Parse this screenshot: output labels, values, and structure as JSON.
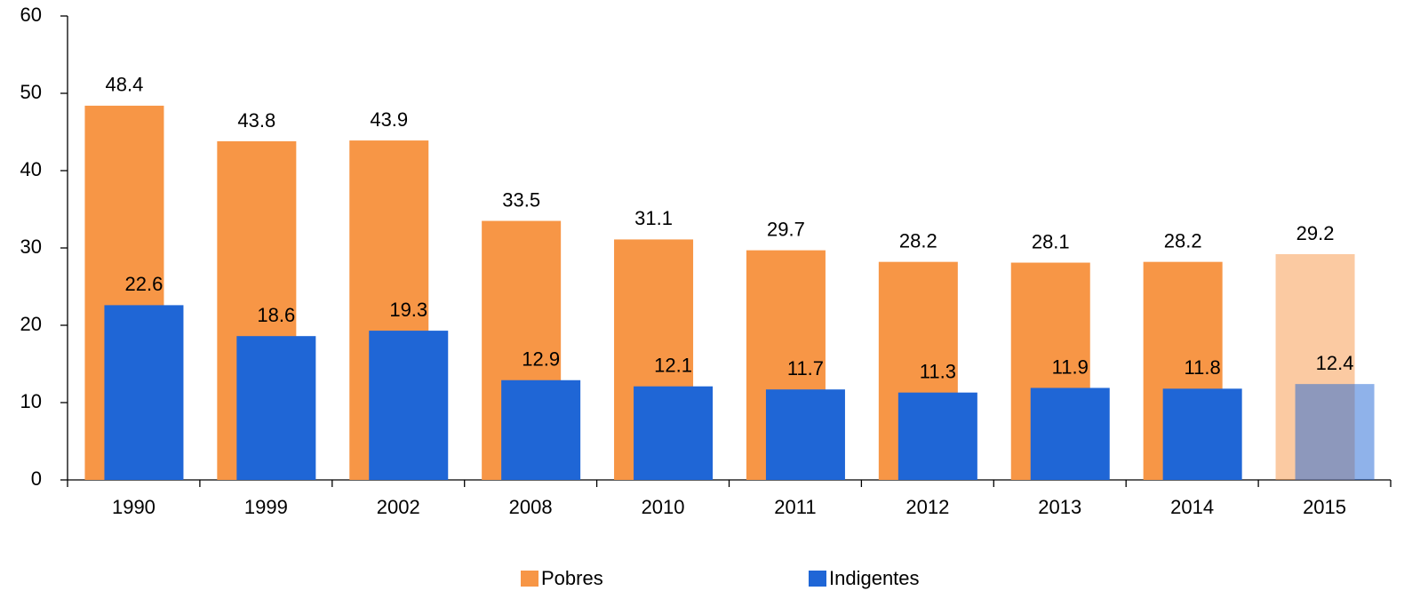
{
  "chart_data": {
    "type": "bar",
    "categories": [
      "1990",
      "1999",
      "2002",
      "2008",
      "2010",
      "2011",
      "2012",
      "2013",
      "2014",
      "2015"
    ],
    "series": [
      {
        "name": "Pobres",
        "color": "#f79646",
        "colors": [
          "#f79646",
          "#f79646",
          "#f79646",
          "#f79646",
          "#f79646",
          "#f79646",
          "#f79646",
          "#f79646",
          "#f79646",
          "rgba(247,150,70,0.5)"
        ],
        "values": [
          48.4,
          43.8,
          43.9,
          33.5,
          31.1,
          29.7,
          28.2,
          28.1,
          28.2,
          29.2
        ]
      },
      {
        "name": "Indigentes",
        "color": "#1f66d6",
        "colors": [
          "#1f66d6",
          "#1f66d6",
          "#1f66d6",
          "#1f66d6",
          "#1f66d6",
          "#1f66d6",
          "#1f66d6",
          "#1f66d6",
          "#1f66d6",
          "rgba(31,102,214,0.5)"
        ],
        "values": [
          22.6,
          18.6,
          19.3,
          12.9,
          12.1,
          11.7,
          11.3,
          11.9,
          11.8,
          12.4
        ]
      }
    ],
    "ylim": [
      0,
      60
    ],
    "yticks": [
      0,
      10,
      20,
      30,
      40,
      50,
      60
    ],
    "grid": false,
    "legend": "bottom"
  }
}
